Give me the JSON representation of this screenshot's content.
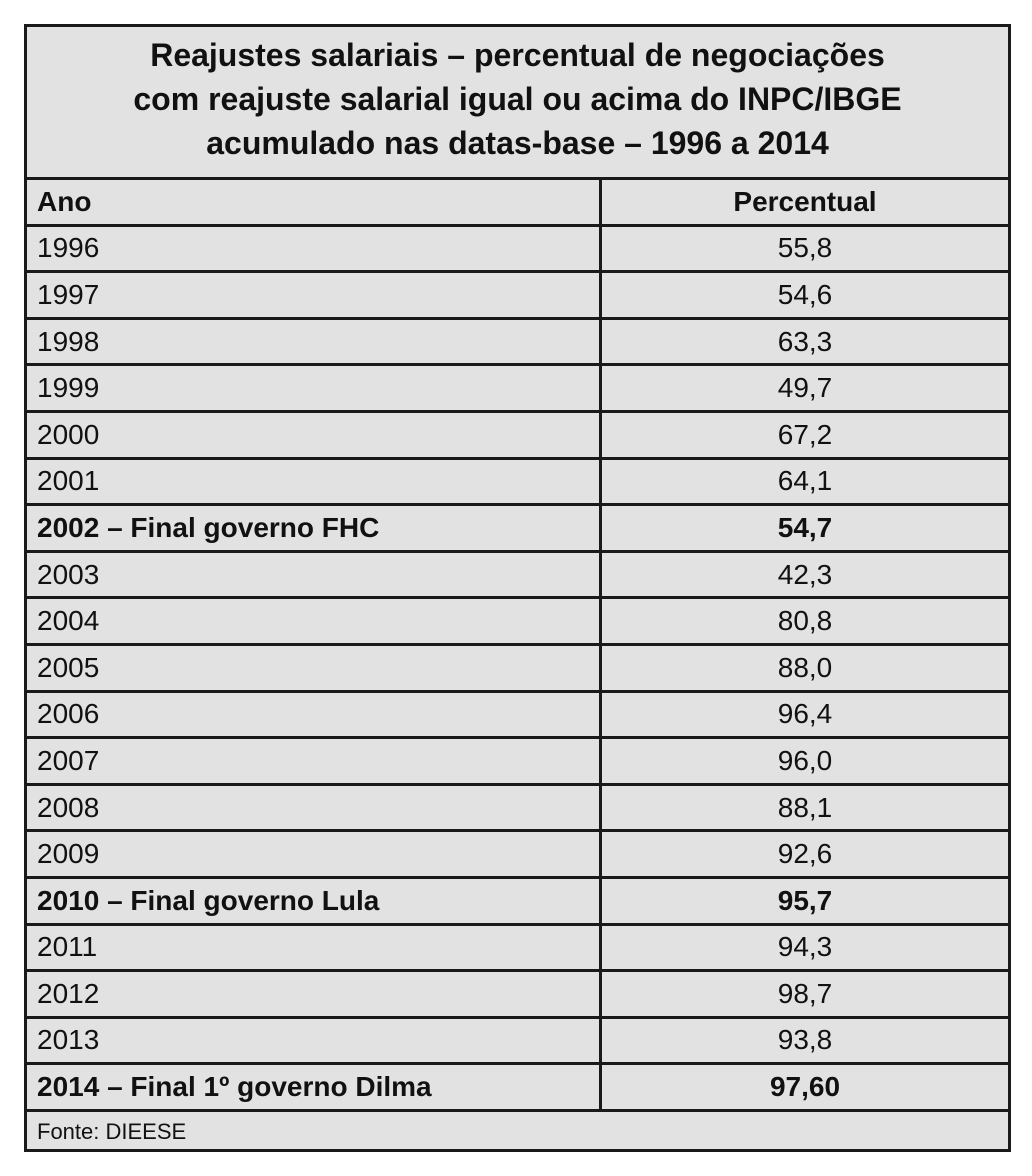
{
  "title_lines": [
    "Reajustes salariais – percentual de negociações",
    "com reajuste salarial igual ou acima do INPC/IBGE",
    "acumulado nas datas-base – 1996 a 2014"
  ],
  "header": {
    "col_ano": "Ano",
    "col_percentual": "Percentual"
  },
  "rows": [
    {
      "ano": "1996",
      "percentual": "55,8",
      "bold": false
    },
    {
      "ano": "1997",
      "percentual": "54,6",
      "bold": false
    },
    {
      "ano": "1998",
      "percentual": "63,3",
      "bold": false
    },
    {
      "ano": "1999",
      "percentual": "49,7",
      "bold": false
    },
    {
      "ano": "2000",
      "percentual": "67,2",
      "bold": false
    },
    {
      "ano": "2001",
      "percentual": "64,1",
      "bold": false
    },
    {
      "ano": "2002 – Final governo FHC",
      "percentual": "54,7",
      "bold": true
    },
    {
      "ano": "2003",
      "percentual": "42,3",
      "bold": false
    },
    {
      "ano": "2004",
      "percentual": "80,8",
      "bold": false
    },
    {
      "ano": "2005",
      "percentual": "88,0",
      "bold": false
    },
    {
      "ano": "2006",
      "percentual": "96,4",
      "bold": false
    },
    {
      "ano": "2007",
      "percentual": "96,0",
      "bold": false
    },
    {
      "ano": "2008",
      "percentual": "88,1",
      "bold": false
    },
    {
      "ano": "2009",
      "percentual": "92,6",
      "bold": false
    },
    {
      "ano": "2010 – Final governo Lula",
      "percentual": "95,7",
      "bold": true
    },
    {
      "ano": "2011",
      "percentual": "94,3",
      "bold": false
    },
    {
      "ano": "2012",
      "percentual": "98,7",
      "bold": false
    },
    {
      "ano": "2013",
      "percentual": "93,8",
      "bold": false
    },
    {
      "ano": "2014 – Final 1º governo Dilma",
      "percentual": "97,60",
      "bold": true
    }
  ],
  "footer": "Fonte: DIEESE",
  "chart_data": {
    "type": "table",
    "title": "Reajustes salariais – percentual de negociações com reajuste salarial igual ou acima do INPC/IBGE acumulado nas datas-base – 1996 a 2014",
    "columns": [
      "Ano",
      "Percentual"
    ],
    "categories": [
      "1996",
      "1997",
      "1998",
      "1999",
      "2000",
      "2001",
      "2002 – Final governo FHC",
      "2003",
      "2004",
      "2005",
      "2006",
      "2007",
      "2008",
      "2009",
      "2010 – Final governo Lula",
      "2011",
      "2012",
      "2013",
      "2014 – Final 1º governo Dilma"
    ],
    "values": [
      55.8,
      54.6,
      63.3,
      49.7,
      67.2,
      64.1,
      54.7,
      42.3,
      80.8,
      88.0,
      96.4,
      96.0,
      88.1,
      92.6,
      95.7,
      94.3,
      98.7,
      93.8,
      97.6
    ]
  }
}
